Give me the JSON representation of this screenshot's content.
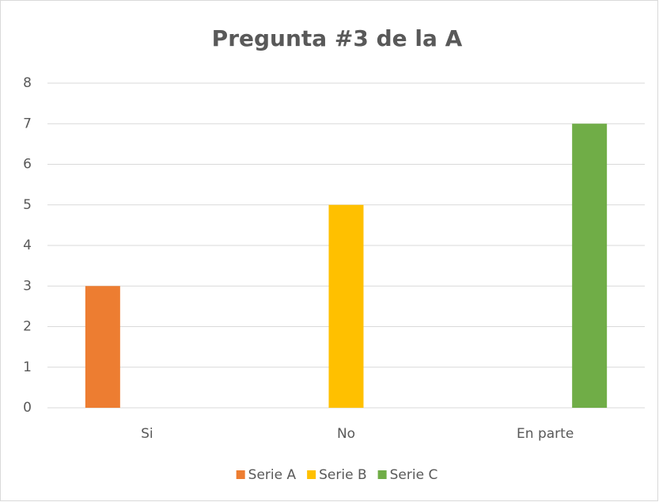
{
  "chart_data": {
    "type": "bar",
    "title": "Pregunta #3 de la A",
    "categories": [
      "Si",
      "No",
      "En parte"
    ],
    "series": [
      {
        "name": "Serie A",
        "color": "#ED7D31",
        "values": [
          3,
          null,
          null
        ]
      },
      {
        "name": "Serie B",
        "color": "#FFC000",
        "values": [
          null,
          5,
          null
        ]
      },
      {
        "name": "Serie C",
        "color": "#70AD47",
        "values": [
          null,
          null,
          7
        ]
      }
    ],
    "ylim": [
      0,
      8
    ],
    "yticks": [
      0,
      1,
      2,
      3,
      4,
      5,
      6,
      7,
      8
    ],
    "grid": true,
    "legend": "bottom"
  }
}
